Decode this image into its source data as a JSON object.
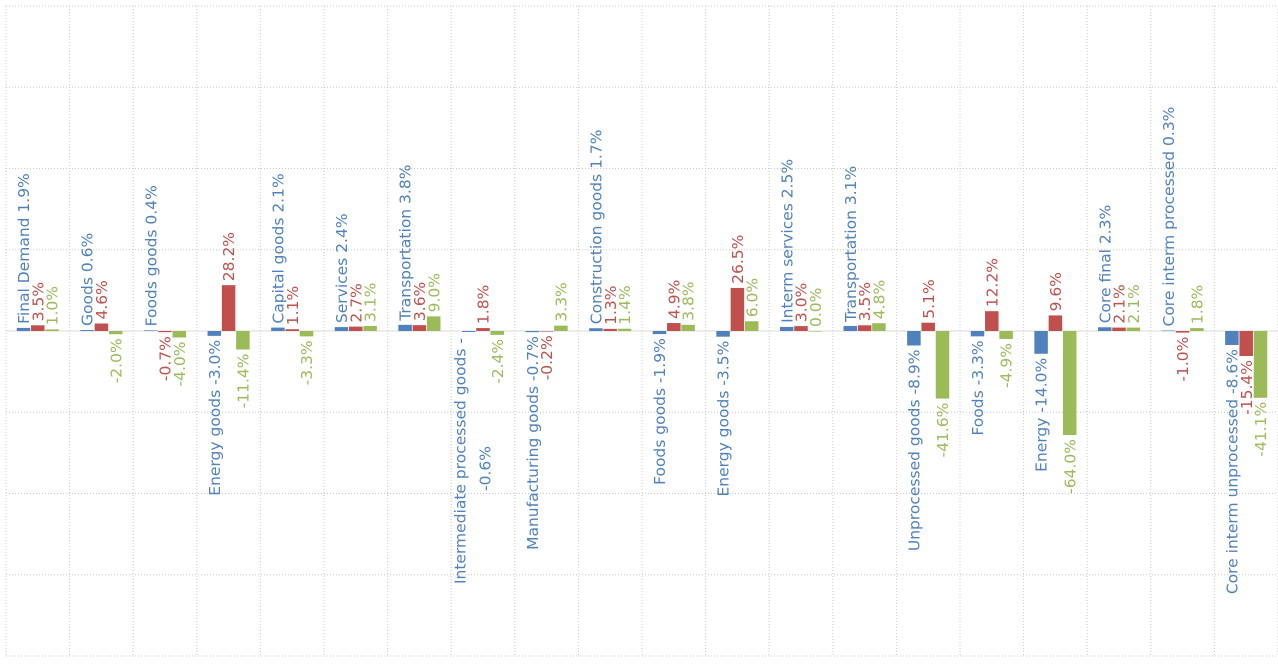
{
  "chart_data": {
    "type": "bar",
    "categories": [
      "Final Demand 1.9%",
      "Goods 0.6%",
      "Foods goods 0.4%",
      "Energy goods -3.0%",
      "Capital goods 2.1%",
      "Services 2.4%",
      "Transportation 3.8%",
      "Intermediate processed goods - 0.6%",
      "Manufacturing goods -0.7%",
      "Construction goods 1.7%",
      "Foods goods -1.9%",
      "Energy goods -3.5%",
      "Interm services 2.5%",
      "Transportation 3.1%",
      "Unprocessed goods -8.9%",
      "Foods -3.3%",
      "Energy -14.0%",
      "Core final 2.3%",
      "Core interm processed 0.3%",
      "Core interm unprocessed -8.6%"
    ],
    "series": [
      {
        "values": [
          1.9,
          0.6,
          0.4,
          -3.0,
          2.1,
          2.4,
          3.8,
          -0.6,
          -0.7,
          1.7,
          -1.9,
          -3.5,
          2.5,
          3.1,
          -8.9,
          -3.3,
          -14.0,
          2.3,
          0.3,
          -8.6
        ]
      },
      {
        "values": [
          3.5,
          4.6,
          -0.7,
          28.2,
          1.1,
          2.7,
          3.6,
          1.8,
          -0.2,
          1.3,
          4.9,
          26.5,
          3.0,
          3.5,
          5.1,
          12.2,
          9.6,
          2.1,
          -1.0,
          -15.4
        ]
      },
      {
        "values": [
          1.0,
          -2.0,
          -4.0,
          -11.4,
          -3.3,
          3.1,
          9.0,
          -2.4,
          3.3,
          1.4,
          3.8,
          6.0,
          0.0,
          4.8,
          -41.6,
          -4.9,
          -64.0,
          2.1,
          1.8,
          -41.1
        ]
      }
    ],
    "series_labels": [
      [
        "1.9%",
        "0.6%",
        "0.4%",
        "-3.0%",
        "2.1%",
        "2.4%",
        "3.8%",
        "-0.6%",
        "-0.7%",
        "1.7%",
        "-1.9%",
        "-3.5%",
        "2.5%",
        "3.1%",
        "-8.9%",
        "-3.3%",
        "-14.0%",
        "2.3%",
        "0.3%",
        "-8.6%"
      ],
      [
        "3.5%",
        "4.6%",
        "-0.7%",
        "28.2%",
        "1.1%",
        "2.7%",
        "3.6%",
        "1.8%",
        "-0.2%",
        "1.3%",
        "4.9%",
        "26.5%",
        "3.0%",
        "3.5%",
        "5.1%",
        "12.2%",
        "9.6%",
        "2.1%",
        "-1.0%",
        "-15.4%"
      ],
      [
        "1.0%",
        "-2.0%",
        "-4.0%",
        "-11.4%",
        "-3.3%",
        "3.1%",
        "9.0%",
        "-2.4%",
        "3.3%",
        "1.4%",
        "3.8%",
        "6.0%",
        "0.0%",
        "4.8%",
        "-41.6%",
        "-4.9%",
        "-64.0%",
        "2.1%",
        "1.8%",
        "-41.1%"
      ]
    ],
    "colors": [
      "#4f81bd",
      "#c0504d",
      "#9bbb59"
    ],
    "ylim": [
      -200,
      200
    ],
    "grid": true,
    "legend": "none"
  }
}
